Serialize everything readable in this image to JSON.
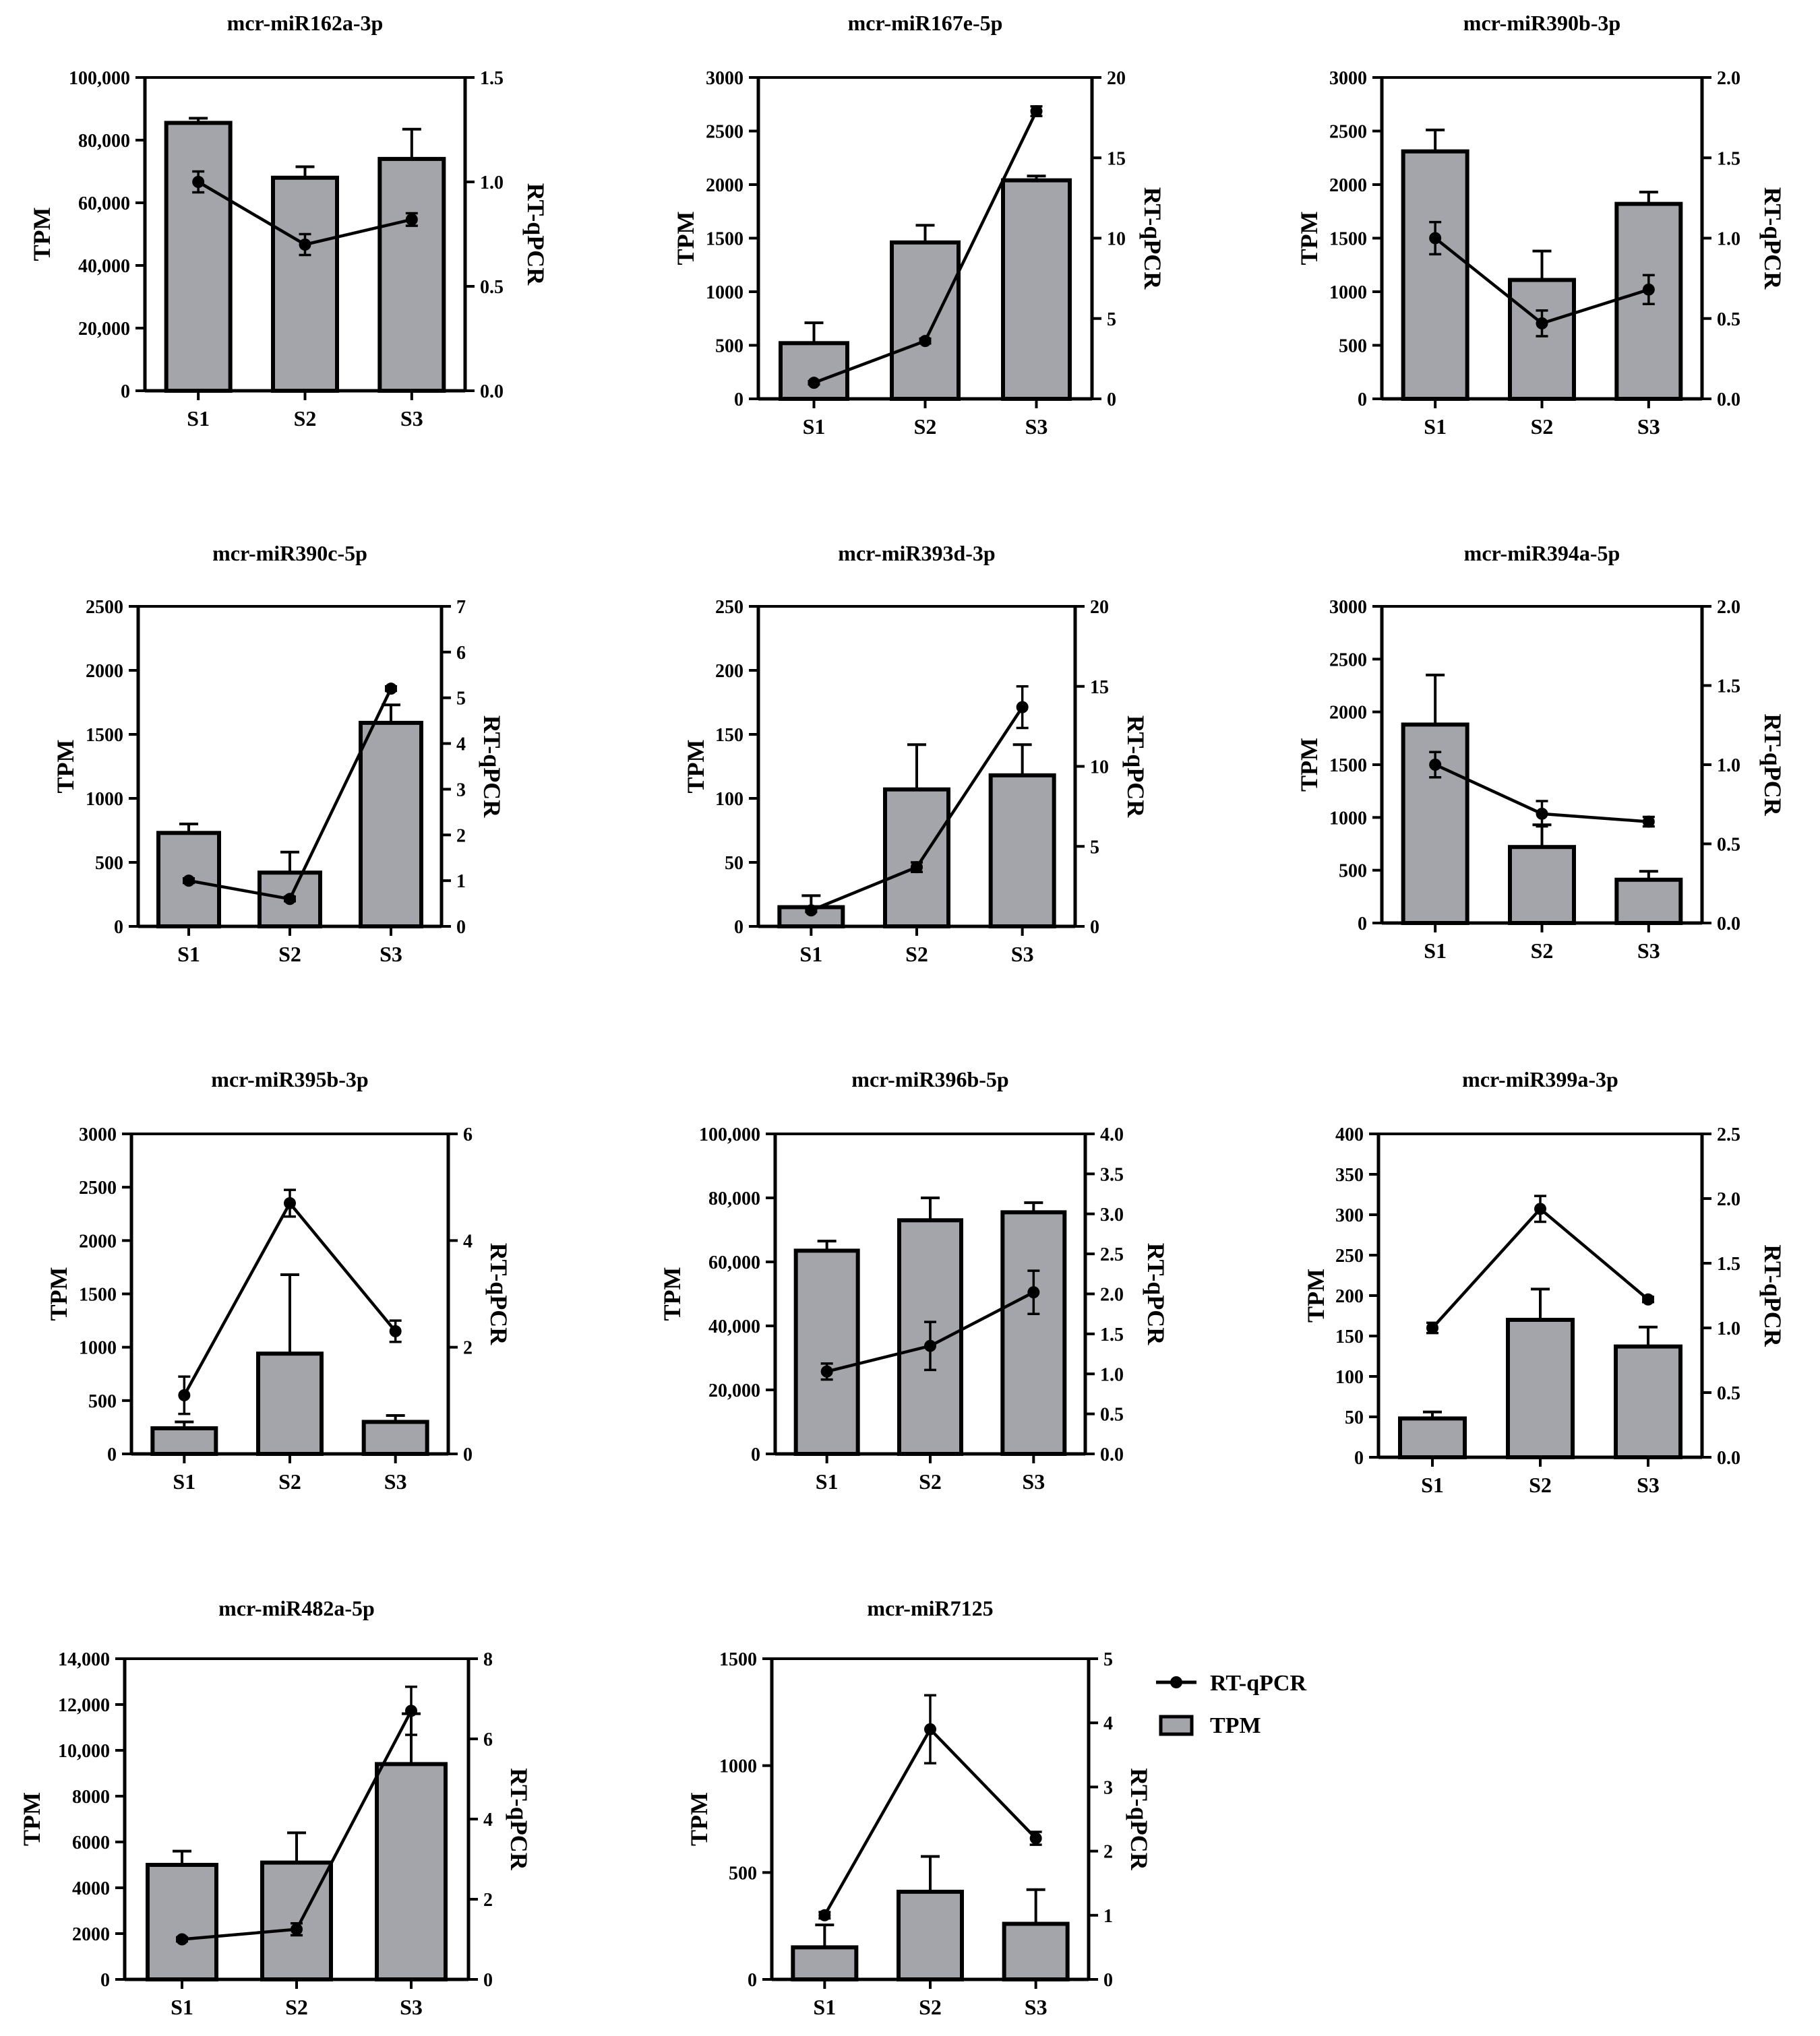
{
  "chart_data": [
    {
      "type": "bar+line",
      "title": "mcr-miR162a-3p",
      "categories": [
        "S1",
        "S2",
        "S3"
      ],
      "ylabel": "TPM",
      "y2label": "RT-qPCR",
      "ylim": [
        0,
        100000
      ],
      "y2lim": [
        0,
        1.5
      ],
      "yticks": [
        "0",
        "20,000",
        "40,000",
        "60,000",
        "80,000",
        "100,000"
      ],
      "y2ticks": [
        "0.0",
        "0.5",
        "1.0",
        "1.5"
      ],
      "tpm": [
        85500,
        68000,
        74000
      ],
      "tpm_err": [
        1500,
        3500,
        9500
      ],
      "rtqpcr": [
        1.0,
        0.7,
        0.82
      ],
      "rtqpcr_err": [
        0.05,
        0.05,
        0.03
      ]
    },
    {
      "type": "bar+line",
      "title": "mcr-miR167e-5p",
      "categories": [
        "S1",
        "S2",
        "S3"
      ],
      "ylabel": "TPM",
      "y2label": "RT-qPCR",
      "ylim": [
        0,
        3000
      ],
      "y2lim": [
        0,
        20
      ],
      "yticks": [
        "0",
        "500",
        "1000",
        "1500",
        "2000",
        "2500",
        "3000"
      ],
      "y2ticks": [
        "0",
        "5",
        "10",
        "15",
        "20"
      ],
      "tpm": [
        520,
        1460,
        2040
      ],
      "tpm_err": [
        190,
        160,
        40
      ],
      "rtqpcr": [
        1.0,
        3.6,
        17.9
      ],
      "rtqpcr_err": [
        0.1,
        0.15,
        0.3
      ]
    },
    {
      "type": "bar+line",
      "title": "mcr-miR390b-3p",
      "categories": [
        "S1",
        "S2",
        "S3"
      ],
      "ylabel": "TPM",
      "y2label": "RT-qPCR",
      "ylim": [
        0,
        3000
      ],
      "y2lim": [
        0,
        2.0
      ],
      "yticks": [
        "0",
        "500",
        "1000",
        "1500",
        "2000",
        "2500",
        "3000"
      ],
      "y2ticks": [
        "0.0",
        "0.5",
        "1.0",
        "1.5",
        "2.0"
      ],
      "tpm": [
        2310,
        1110,
        1820
      ],
      "tpm_err": [
        200,
        270,
        110
      ],
      "rtqpcr": [
        1.0,
        0.47,
        0.68
      ],
      "rtqpcr_err": [
        0.1,
        0.08,
        0.09
      ]
    },
    {
      "type": "bar+line",
      "title": "mcr-miR390c-5p",
      "categories": [
        "S1",
        "S2",
        "S3"
      ],
      "ylabel": "TPM",
      "y2label": "RT-qPCR",
      "ylim": [
        0,
        2500
      ],
      "y2lim": [
        0,
        7
      ],
      "yticks": [
        "0",
        "500",
        "1000",
        "1500",
        "2000",
        "2500"
      ],
      "y2ticks": [
        "0",
        "1",
        "2",
        "3",
        "4",
        "5",
        "6",
        "7"
      ],
      "tpm": [
        730,
        420,
        1590
      ],
      "tpm_err": [
        70,
        160,
        140
      ],
      "rtqpcr": [
        1.0,
        0.6,
        5.2
      ],
      "rtqpcr_err": [
        0.05,
        0.05,
        0.05
      ]
    },
    {
      "type": "bar+line",
      "title": "mcr-miR393d-3p",
      "categories": [
        "S1",
        "S2",
        "S3"
      ],
      "ylabel": "TPM",
      "y2label": "RT-qPCR",
      "ylim": [
        0,
        250
      ],
      "y2lim": [
        0,
        20
      ],
      "yticks": [
        "0",
        "50",
        "100",
        "150",
        "200",
        "250"
      ],
      "y2ticks": [
        "0",
        "5",
        "10",
        "15",
        "20"
      ],
      "tpm": [
        15,
        107,
        118
      ],
      "tpm_err": [
        9,
        35,
        24
      ],
      "rtqpcr": [
        1.0,
        3.7,
        13.7
      ],
      "rtqpcr_err": [
        0.1,
        0.3,
        1.3
      ]
    },
    {
      "type": "bar+line",
      "title": "mcr-miR394a-5p",
      "categories": [
        "S1",
        "S2",
        "S3"
      ],
      "ylabel": "TPM",
      "y2label": "RT-qPCR",
      "ylim": [
        0,
        3000
      ],
      "y2lim": [
        0,
        2.0
      ],
      "yticks": [
        "0",
        "500",
        "1000",
        "1500",
        "2000",
        "2500",
        "3000"
      ],
      "y2ticks": [
        "0.0",
        "0.5",
        "1.0",
        "1.5",
        "2.0"
      ],
      "tpm": [
        1880,
        720,
        410
      ],
      "tpm_err": [
        470,
        210,
        80
      ],
      "rtqpcr": [
        1.0,
        0.69,
        0.64
      ],
      "rtqpcr_err": [
        0.08,
        0.08,
        0.03
      ]
    },
    {
      "type": "bar+line",
      "title": "mcr-miR395b-3p",
      "categories": [
        "S1",
        "S2",
        "S3"
      ],
      "ylabel": "TPM",
      "y2label": "RT-qPCR",
      "ylim": [
        0,
        3000
      ],
      "y2lim": [
        0,
        6
      ],
      "yticks": [
        "0",
        "500",
        "1000",
        "1500",
        "2000",
        "2500",
        "3000"
      ],
      "y2ticks": [
        "0",
        "2",
        "4",
        "6"
      ],
      "tpm": [
        240,
        940,
        300
      ],
      "tpm_err": [
        60,
        740,
        60
      ],
      "rtqpcr": [
        1.1,
        4.7,
        2.3
      ],
      "rtqpcr_err": [
        0.35,
        0.25,
        0.2
      ]
    },
    {
      "type": "bar+line",
      "title": "mcr-miR396b-5p",
      "categories": [
        "S1",
        "S2",
        "S3"
      ],
      "ylabel": "TPM",
      "y2label": "RT-qPCR",
      "ylim": [
        0,
        100000
      ],
      "y2lim": [
        0,
        4.0
      ],
      "yticks": [
        "0",
        "20,000",
        "40,000",
        "60,000",
        "80,000",
        "100,000"
      ],
      "y2ticks": [
        "0.0",
        "0.5",
        "1.0",
        "1.5",
        "2.0",
        "2.5",
        "3.0",
        "3.5",
        "4.0"
      ],
      "tpm": [
        63500,
        73000,
        75500
      ],
      "tpm_err": [
        3000,
        7000,
        3000
      ],
      "rtqpcr": [
        1.03,
        1.35,
        2.02
      ],
      "rtqpcr_err": [
        0.1,
        0.3,
        0.27
      ]
    },
    {
      "type": "bar+line",
      "title": "mcr-miR399a-3p",
      "categories": [
        "S1",
        "S2",
        "S3"
      ],
      "ylabel": "TPM",
      "y2label": "RT-qPCR",
      "ylim": [
        0,
        400
      ],
      "y2lim": [
        0,
        2.5
      ],
      "yticks": [
        "0",
        "50",
        "100",
        "150",
        "200",
        "250",
        "300",
        "350",
        "400"
      ],
      "y2ticks": [
        "0.0",
        "0.5",
        "1.0",
        "1.5",
        "2.0",
        "2.5"
      ],
      "tpm": [
        48,
        170,
        137
      ],
      "tpm_err": [
        8,
        38,
        24
      ],
      "rtqpcr": [
        1.0,
        1.92,
        1.22
      ],
      "rtqpcr_err": [
        0.04,
        0.1,
        0.02
      ]
    },
    {
      "type": "bar+line",
      "title": "mcr-miR482a-5p",
      "categories": [
        "S1",
        "S2",
        "S3"
      ],
      "ylabel": "TPM",
      "y2label": "RT-qPCR",
      "ylim": [
        0,
        14000
      ],
      "y2lim": [
        0,
        8
      ],
      "yticks": [
        "0",
        "2000",
        "4000",
        "6000",
        "8000",
        "10,000",
        "12,000",
        "14,000"
      ],
      "y2ticks": [
        "0",
        "2",
        "4",
        "6",
        "8"
      ],
      "tpm": [
        5000,
        5100,
        9400
      ],
      "tpm_err": [
        600,
        1300,
        2200
      ],
      "rtqpcr": [
        1.0,
        1.25,
        6.7
      ],
      "rtqpcr_err": [
        0.05,
        0.15,
        0.6
      ]
    },
    {
      "type": "bar+line",
      "title": "mcr-miR7125",
      "categories": [
        "S1",
        "S2",
        "S3"
      ],
      "ylabel": "TPM",
      "y2label": "RT-qPCR",
      "ylim": [
        0,
        1500
      ],
      "y2lim": [
        0,
        5
      ],
      "yticks": [
        "0",
        "500",
        "1000",
        "1500"
      ],
      "y2ticks": [
        "0",
        "1",
        "2",
        "3",
        "4",
        "5"
      ],
      "tpm": [
        150,
        410,
        260
      ],
      "tpm_err": [
        105,
        165,
        160
      ],
      "rtqpcr": [
        1.0,
        3.9,
        2.2
      ],
      "rtqpcr_err": [
        0.05,
        0.53,
        0.1
      ]
    }
  ],
  "legend": {
    "line_label": "RT-qPCR",
    "bar_label": "TPM"
  },
  "colors": {
    "bar_fill": "#a4a4ab",
    "stroke": "#000000"
  }
}
